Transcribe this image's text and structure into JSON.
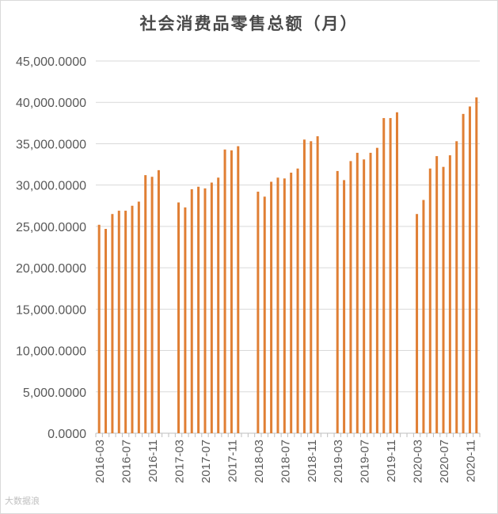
{
  "chart_data": {
    "type": "bar",
    "title": "社会消费品零售总额（月）",
    "xlabel": "",
    "ylabel": "",
    "ylim": [
      0,
      45000
    ],
    "yticks": [
      "0.0000",
      "5,000.0000",
      "10,000.0000",
      "15,000.0000",
      "20,000.0000",
      "25,000.0000",
      "30,000.0000",
      "35,000.0000",
      "40,000.0000",
      "45,000.0000"
    ],
    "xtick_labels": [
      "2016-03",
      "2016-07",
      "2016-11",
      "2017-03",
      "2017-07",
      "2017-11",
      "2018-03",
      "2018-07",
      "2018-11",
      "2019-03",
      "2019-07",
      "2019-11",
      "2020-03",
      "2020-07",
      "2020-11"
    ],
    "grid": true,
    "bar_color": "#e07f34",
    "categories": [
      "2016-03",
      "2016-04",
      "2016-05",
      "2016-06",
      "2016-07",
      "2016-08",
      "2016-09",
      "2016-10",
      "2016-11",
      "2016-12",
      "2017-01",
      "2017-02",
      "2017-03",
      "2017-04",
      "2017-05",
      "2017-06",
      "2017-07",
      "2017-08",
      "2017-09",
      "2017-10",
      "2017-11",
      "2017-12",
      "2018-01",
      "2018-02",
      "2018-03",
      "2018-04",
      "2018-05",
      "2018-06",
      "2018-07",
      "2018-08",
      "2018-09",
      "2018-10",
      "2018-11",
      "2018-12",
      "2019-01",
      "2019-02",
      "2019-03",
      "2019-04",
      "2019-05",
      "2019-06",
      "2019-07",
      "2019-08",
      "2019-09",
      "2019-10",
      "2019-11",
      "2019-12",
      "2020-01",
      "2020-02",
      "2020-03",
      "2020-04",
      "2020-05",
      "2020-06",
      "2020-07",
      "2020-08",
      "2020-09",
      "2020-10",
      "2020-11",
      "2020-12"
    ],
    "values": [
      25200,
      24700,
      26500,
      26900,
      26900,
      27500,
      28000,
      31200,
      31000,
      31800,
      null,
      null,
      27900,
      27300,
      29500,
      29800,
      29600,
      30300,
      30900,
      34300,
      34200,
      34700,
      null,
      null,
      29200,
      28600,
      30400,
      30900,
      30800,
      31500,
      32000,
      35500,
      35300,
      35900,
      null,
      null,
      31700,
      30600,
      32900,
      33900,
      33100,
      33900,
      34500,
      38100,
      38100,
      38800,
      null,
      null,
      26500,
      28200,
      32000,
      33500,
      32200,
      33600,
      35300,
      38600,
      39500,
      40600
    ]
  },
  "watermark": "大数据浪"
}
